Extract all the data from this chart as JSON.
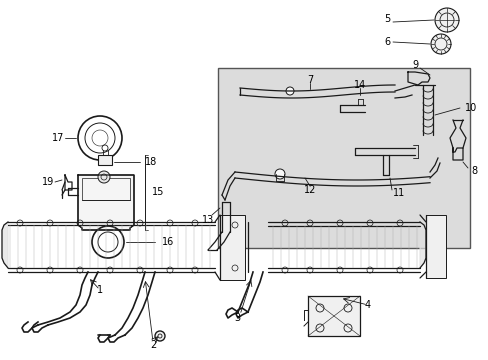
{
  "background_color": "#ffffff",
  "box_fill_color": "#dcdcdc",
  "line_color": "#1a1a1a",
  "label_color": "#000000",
  "fig_width": 4.89,
  "fig_height": 3.6,
  "dpi": 100
}
